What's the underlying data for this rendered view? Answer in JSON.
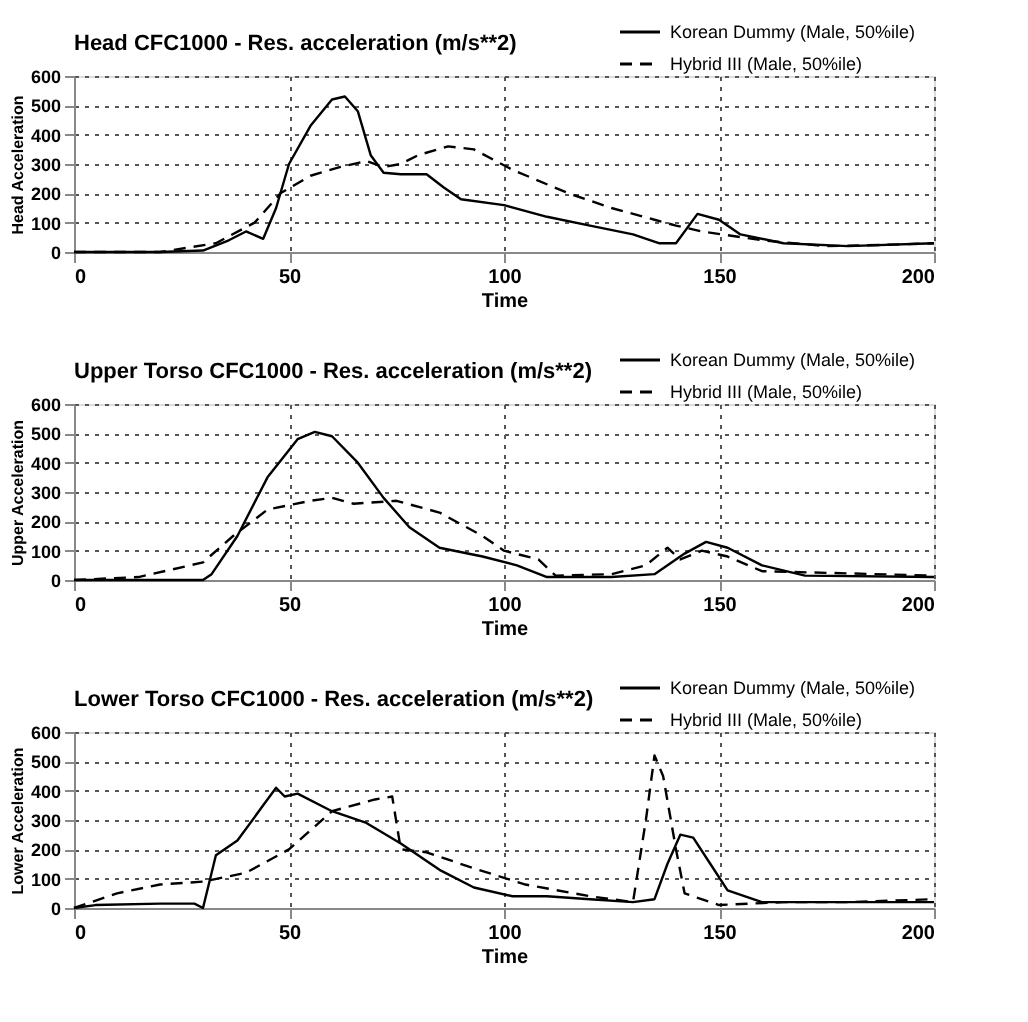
{
  "chart_data": [
    {
      "type": "line",
      "title": "Head CFC1000 - Res. acceleration (m/s**2)",
      "xlabel": "Time",
      "ylabel": "Head Acceleration",
      "xlim": [
        0,
        200
      ],
      "xticks": [
        0,
        50,
        100,
        150,
        200
      ],
      "ylim": [
        0,
        600
      ],
      "yticks": [
        0,
        100,
        200,
        300,
        400,
        500,
        600
      ],
      "grid": true,
      "legend": "top right",
      "marker": "none",
      "series": [
        {
          "name": "Korean Dummy (Male, 50%ile)",
          "color": "#000000",
          "line_style": "solid",
          "x": [
            0,
            20,
            30,
            36,
            40,
            44,
            47,
            50,
            55,
            60,
            63,
            66,
            69,
            72,
            76,
            82,
            86,
            90,
            100,
            110,
            120,
            130,
            136,
            140,
            145,
            150,
            155,
            165,
            180,
            200
          ],
          "values": [
            0,
            0,
            5,
            40,
            70,
            45,
            150,
            300,
            430,
            520,
            530,
            480,
            330,
            270,
            265,
            265,
            220,
            180,
            160,
            120,
            90,
            60,
            30,
            30,
            130,
            110,
            60,
            30,
            20,
            30
          ]
        },
        {
          "name": "Hybrid III (Male, 50%ile)",
          "color": "#000000",
          "line_style": "dashed",
          "x": [
            0,
            20,
            33,
            42,
            48,
            55,
            62,
            68,
            72,
            76,
            80,
            87,
            93,
            102,
            115,
            125,
            135,
            140,
            146,
            160,
            175,
            190,
            200
          ],
          "values": [
            0,
            0,
            30,
            100,
            200,
            260,
            290,
            310,
            290,
            300,
            330,
            360,
            350,
            280,
            200,
            150,
            110,
            90,
            70,
            40,
            20,
            25,
            30
          ]
        }
      ]
    },
    {
      "type": "line",
      "title": "Upper Torso CFC1000 - Res. acceleration (m/s**2)",
      "xlabel": "Time",
      "ylabel": "Upper Acceleration",
      "xlim": [
        0,
        200
      ],
      "xticks": [
        0,
        50,
        100,
        150,
        200
      ],
      "ylim": [
        0,
        600
      ],
      "yticks": [
        0,
        100,
        200,
        300,
        400,
        500,
        600
      ],
      "grid": true,
      "legend": "top right",
      "marker": "none",
      "series": [
        {
          "name": "Korean Dummy (Male, 50%ile)",
          "color": "#000000",
          "line_style": "solid",
          "x": [
            0,
            30,
            32,
            38,
            45,
            52,
            56,
            60,
            66,
            72,
            78,
            85,
            95,
            103,
            110,
            125,
            135,
            142,
            147,
            152,
            160,
            170,
            200
          ],
          "values": [
            0,
            0,
            20,
            150,
            350,
            480,
            505,
            490,
            400,
            280,
            180,
            110,
            80,
            50,
            10,
            10,
            20,
            90,
            130,
            110,
            50,
            15,
            10
          ]
        },
        {
          "name": "Hybrid III (Male, 50%ile)",
          "color": "#000000",
          "line_style": "dashed",
          "x": [
            0,
            15,
            30,
            37,
            45,
            55,
            60,
            65,
            75,
            85,
            95,
            100,
            108,
            112,
            125,
            133,
            138,
            141,
            146,
            152,
            160,
            200
          ],
          "values": [
            0,
            10,
            60,
            150,
            240,
            270,
            280,
            260,
            270,
            230,
            150,
            100,
            70,
            15,
            20,
            50,
            110,
            70,
            100,
            80,
            30,
            15
          ]
        }
      ]
    },
    {
      "type": "line",
      "title": "Lower Torso CFC1000 - Res. acceleration (m/s**2)",
      "xlabel": "Time",
      "ylabel": "Lower Acceleration",
      "xlim": [
        0,
        200
      ],
      "xticks": [
        0,
        50,
        100,
        150,
        200
      ],
      "ylim": [
        0,
        600
      ],
      "yticks": [
        0,
        100,
        200,
        300,
        400,
        500,
        600
      ],
      "grid": true,
      "legend": "top right",
      "marker": "none",
      "series": [
        {
          "name": "Korean Dummy (Male, 50%ile)",
          "color": "#000000",
          "line_style": "solid",
          "x": [
            0,
            5,
            20,
            28,
            30,
            33,
            38,
            44,
            47,
            49,
            52,
            60,
            68,
            76,
            85,
            93,
            102,
            110,
            120,
            130,
            135,
            138,
            141,
            144,
            148,
            152,
            160,
            170,
            200
          ],
          "values": [
            0,
            10,
            15,
            15,
            0,
            180,
            230,
            350,
            410,
            380,
            390,
            330,
            290,
            220,
            130,
            70,
            40,
            40,
            30,
            20,
            30,
            150,
            250,
            240,
            150,
            60,
            20,
            20,
            20
          ]
        },
        {
          "name": "Hybrid III (Male, 50%ile)",
          "color": "#000000",
          "line_style": "dashed",
          "x": [
            0,
            10,
            20,
            30,
            40,
            50,
            60,
            70,
            74,
            76,
            82,
            92,
            105,
            120,
            130,
            133,
            135,
            137,
            140,
            142,
            150,
            165,
            180,
            200
          ],
          "values": [
            0,
            50,
            80,
            90,
            120,
            200,
            330,
            370,
            380,
            200,
            190,
            140,
            80,
            40,
            20,
            300,
            520,
            450,
            200,
            50,
            10,
            20,
            20,
            30
          ]
        }
      ]
    }
  ]
}
